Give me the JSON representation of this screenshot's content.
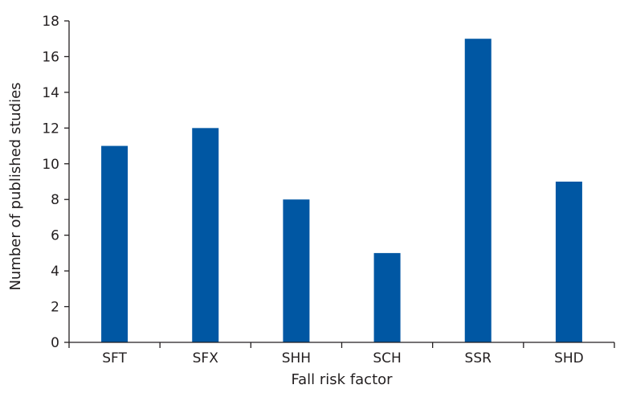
{
  "chart_data": {
    "type": "bar",
    "categories": [
      "SFT",
      "SFX",
      "SHH",
      "SCH",
      "SSR",
      "SHD"
    ],
    "values": [
      11,
      12,
      8,
      5,
      17,
      9
    ],
    "title": "",
    "xlabel": "Fall risk factor",
    "ylabel": "Number of published studies",
    "ylim": [
      0,
      18
    ],
    "yticks": [
      0,
      2,
      4,
      6,
      8,
      10,
      12,
      14,
      16,
      18
    ],
    "grid": false,
    "legend": "none",
    "bar_color": "#0057a3"
  }
}
